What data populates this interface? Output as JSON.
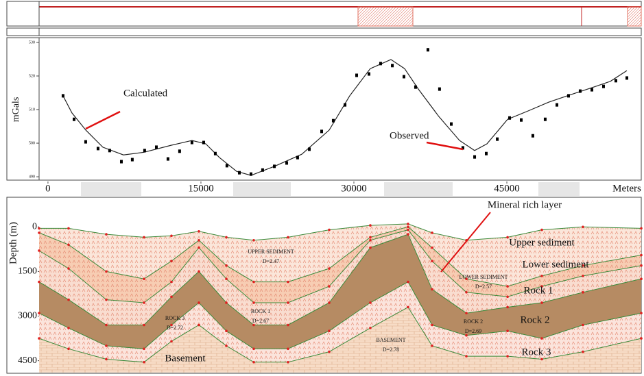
{
  "chart_data": [
    {
      "type": "line",
      "y_label": "mGals",
      "xlim": [
        -870,
        58180
      ],
      "ylim": [
        489.2,
        530.8
      ],
      "yticks": [
        490,
        500,
        510,
        520,
        530
      ],
      "series": [
        {
          "name": "Calculated",
          "mode": "line",
          "color": "#222222",
          "x": [
            1480,
            2350,
            3700,
            5380,
            7400,
            9420,
            12110,
            14120,
            15470,
            16820,
            18500,
            19910,
            22200,
            24890,
            27580,
            29590,
            31610,
            33630,
            34970,
            36320,
            38340,
            40360,
            41840,
            43050,
            45070,
            47080,
            49100,
            51120,
            53130,
            55150,
            56770
          ],
          "values": [
            514.1,
            509,
            503.9,
            498.8,
            496.5,
            497.3,
            499.4,
            500.8,
            499.8,
            495.7,
            491.6,
            490.4,
            493.1,
            496.7,
            503.9,
            514.1,
            522.2,
            524.9,
            522.2,
            516.1,
            507.9,
            500.8,
            497.8,
            499.8,
            507.1,
            509.6,
            512.2,
            514.3,
            516.3,
            518.4,
            521.6
          ]
        },
        {
          "name": "Observed",
          "mode": "markers",
          "color": "#000000",
          "x": [
            1480,
            2560,
            3700,
            4910,
            6050,
            7200,
            8270,
            9480,
            10630,
            11770,
            12910,
            14120,
            15270,
            16410,
            17550,
            18770,
            19910,
            21050,
            22200,
            23410,
            24480,
            25630,
            26840,
            27980,
            29130,
            30270,
            31480,
            32620,
            33770,
            34910,
            36050,
            37260,
            38400,
            39550,
            40690,
            41840,
            42980,
            44060,
            45270,
            46410,
            47550,
            48760,
            49910,
            51050,
            52190,
            53340,
            54480,
            55690,
            56770
          ],
          "values": [
            514.1,
            507.1,
            500.4,
            498.4,
            497.8,
            494.5,
            495.1,
            497.8,
            498.8,
            495.3,
            497.6,
            500.2,
            500.2,
            496.9,
            493.3,
            491.2,
            490.8,
            492,
            493.1,
            494.1,
            495.7,
            498.2,
            503.5,
            506.7,
            511.4,
            520.2,
            520.6,
            523.7,
            523.1,
            519.8,
            516.7,
            527.8,
            516.1,
            505.7,
            498.6,
            495.9,
            496.9,
            501.2,
            507.5,
            506.9,
            502.2,
            507.1,
            511.4,
            514.1,
            515.5,
            515.9,
            516.9,
            518.6,
            519.4
          ]
        }
      ]
    },
    {
      "type": "area",
      "y_label": "Depth (m)",
      "x_label": "Meters",
      "xlim": [
        -870,
        58180
      ],
      "xticks": [
        0,
        15000,
        30000,
        45000
      ],
      "ylim": [
        -950,
        4900
      ],
      "inverted": true,
      "yticks": [
        0,
        1500,
        3000,
        4500
      ],
      "x": [
        -870,
        2020,
        5720,
        9420,
        12110,
        14800,
        17490,
        20180,
        23540,
        27580,
        31610,
        35310,
        37670,
        41030,
        45070,
        48430,
        52460,
        58180
      ],
      "series": [
        {
          "name": "UPPER SEDIMENT",
          "density": "D=2.47",
          "color": "#fbe6da",
          "values": [
            50,
            50,
            250,
            350,
            300,
            150,
            350,
            450,
            350,
            100,
            -50,
            -100,
            200,
            450,
            350,
            100,
            0,
            50
          ]
        },
        {
          "name": "LOWER SEDIMENT",
          "density": "D=2.57",
          "color": "#f7cdb3",
          "values": [
            200,
            600,
            1500,
            1750,
            1150,
            450,
            1300,
            1850,
            1850,
            1400,
            350,
            0,
            700,
            1750,
            2000,
            1650,
            1300,
            950
          ]
        },
        {
          "name": "ROCK 1",
          "density": "D=2.67",
          "color": "#f9ddd0",
          "values": [
            800,
            1400,
            2450,
            2550,
            1850,
            700,
            1750,
            2550,
            2550,
            2000,
            450,
            100,
            1150,
            2200,
            2350,
            2000,
            1650,
            1300
          ]
        },
        {
          "name": "ROCK 2",
          "density": "D=2.69",
          "color": "#b68b63",
          "values": [
            1850,
            2450,
            3300,
            3300,
            2350,
            1500,
            2550,
            3300,
            3300,
            2550,
            700,
            250,
            2100,
            2900,
            2700,
            2550,
            2200,
            1750
          ]
        },
        {
          "name": "ROCK 3",
          "density": "D=2.72",
          "color": "#fbe4dc",
          "values": [
            2900,
            3400,
            4000,
            4100,
            3300,
            2550,
            3500,
            4100,
            4100,
            3500,
            2550,
            1850,
            3300,
            3650,
            3500,
            3750,
            3300,
            2900
          ]
        },
        {
          "name": "BASEMENT",
          "density": "D=2.78",
          "color": "#f7dcc6",
          "values": [
            3750,
            4100,
            4450,
            4550,
            3850,
            3300,
            4000,
            4550,
            4550,
            4200,
            3400,
            2700,
            4000,
            4350,
            4350,
            4450,
            4200,
            3750
          ]
        }
      ],
      "annotations": [
        "Upper sediment",
        "Lower sediment",
        "Rock 1",
        "Rock 2",
        "Rock 3",
        "Basement",
        "Mineral rich layer"
      ]
    }
  ]
}
